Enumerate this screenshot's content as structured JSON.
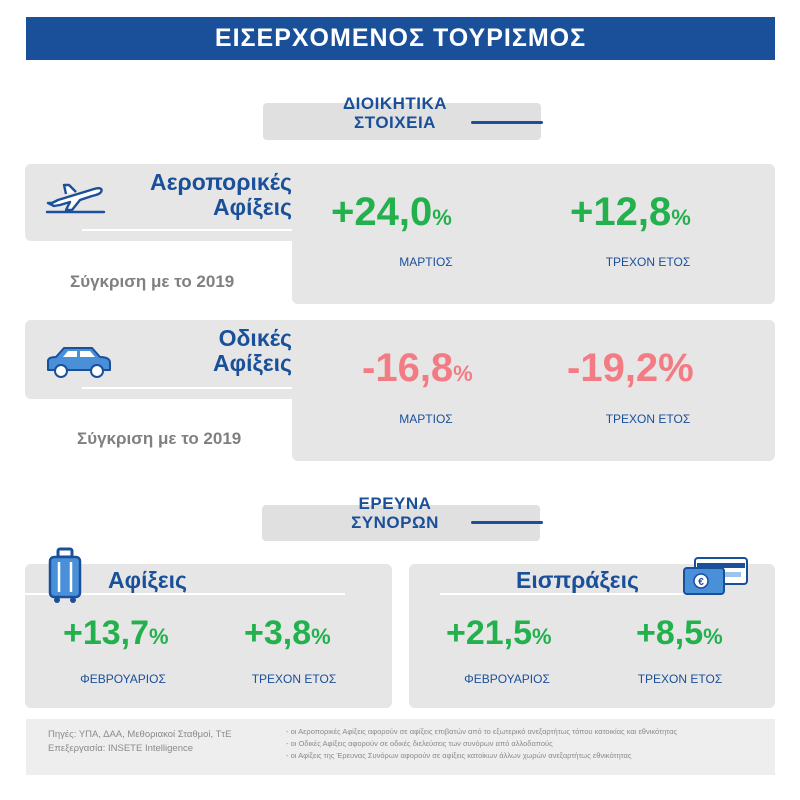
{
  "title": "ΕΙΣΕΡΧΟΜΕΝΟΣ ΤΟΥΡΙΣΜΟΣ",
  "sections": {
    "admin": {
      "line1": "ΔΙΟΙΚΗΤΙΚΑ",
      "line2": "ΣΤΟΙΧΕΙΑ"
    },
    "border": {
      "line1": "ΕΡΕΥΝΑ",
      "line2": "ΣΥΝΟΡΩΝ"
    }
  },
  "air": {
    "icon": "airplane-icon",
    "label1": "Αεροπορικές",
    "label2": "Αφίξεις",
    "compare": "Σύγκριση με το 2019",
    "m1": {
      "value": "+24,0",
      "unit": "%",
      "label": "ΜΑΡΤΙΟΣ"
    },
    "m2": {
      "value": "+12,8",
      "unit": "%",
      "label": "ΤΡΕΧΟΝ ΕΤΟΣ"
    }
  },
  "road": {
    "icon": "car-icon",
    "label1": "Οδικές",
    "label2": "Αφίξεις",
    "compare": "Σύγκριση με το 2019",
    "m1": {
      "value": "-16,8",
      "unit": "%",
      "label": "ΜΑΡΤΙΟΣ"
    },
    "m2": {
      "value": "-19,2%",
      "label": "ΤΡΕΧΟΝ ΕΤΟΣ"
    }
  },
  "arrivals": {
    "icon": "suitcase-icon",
    "label": "Αφίξεις",
    "m1": {
      "value": "+13,7",
      "unit": "%",
      "label": "ΦΕΒΡΟΥΑΡΙΟΣ"
    },
    "m2": {
      "value": "+3,8",
      "unit": "%",
      "label": "ΤΡΕΧΟΝ ΕΤΟΣ"
    }
  },
  "receipts": {
    "icon": "credit-card-euro-icon",
    "label": "Εισπράξεις",
    "m1": {
      "value": "+21,5",
      "unit": "%",
      "label": "ΦΕΒΡΟΥΑΡΙΟΣ"
    },
    "m2": {
      "value": "+8,5",
      "unit": "%",
      "label": "ΤΡΕΧΟΝ ΕΤΟΣ"
    }
  },
  "footer": {
    "sources": "Πηγές: ΥΠΑ, ΔΑΑ, Μεθοριακοί Σταθμοί, ΤτΕ",
    "processing": "Επεξεργασία: INSETE Intelligence",
    "notes": [
      "- οι Αεροπορικές Αφίξεις αφορούν σε αφίξεις επιβατών από το εξωτερικό ανεξαρτήτως τόπου κατοικίας και εθνικότητας",
      "- οι Οδικές Αφίξεις αφορούν σε οδικές διελεύσεις των συνόρων από αλλοδαπούς",
      "- οι Αφίξεις της Έρευνας Συνόρων αφορούν σε αφίξεις κατοίκων άλλων χωρών ανεξαρτήτως εθνικότητας"
    ]
  },
  "colors": {
    "brand": "#1a4f99",
    "positive": "#22b14c",
    "negative": "#f27b84",
    "panel": "#e6e6e6"
  }
}
